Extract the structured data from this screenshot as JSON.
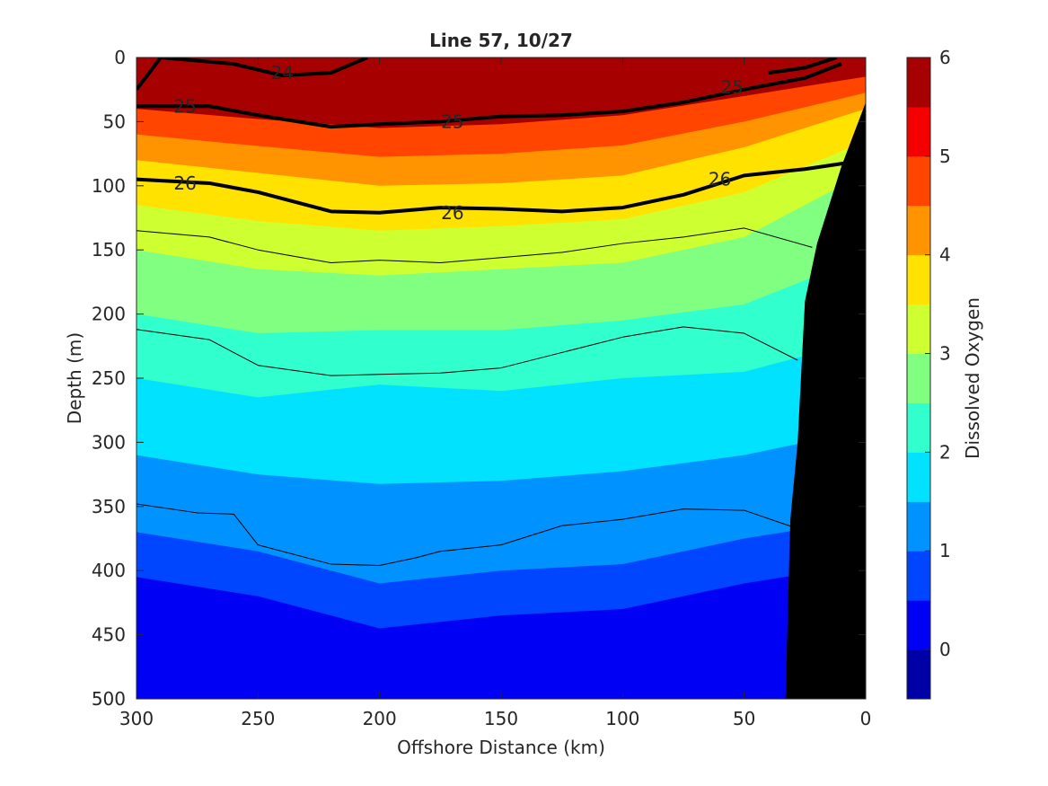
{
  "chart_data": {
    "type": "heatmap",
    "title": "Line 57, 10/27",
    "xlabel": "Offshore Distance (km)",
    "ylabel": "Depth (m)",
    "colorbar_label": "Dissolved Oxygen",
    "xlim": [
      300,
      0
    ],
    "ylim": [
      0,
      500
    ],
    "x_reversed": true,
    "y_reversed": true,
    "x_ticks": [
      300,
      250,
      200,
      150,
      100,
      50,
      0
    ],
    "y_ticks": [
      0,
      50,
      100,
      150,
      200,
      250,
      300,
      350,
      400,
      450,
      500
    ],
    "colorbar_range": [
      -0.5,
      6
    ],
    "colorbar_ticks": [
      0,
      1,
      2,
      3,
      4,
      5,
      6
    ],
    "colormap": "jet",
    "grid": false,
    "legend": "none",
    "oxygen_level_depths": {
      "levels": [
        5,
        4,
        3,
        2,
        1
      ],
      "x": [
        300,
        250,
        200,
        150,
        100,
        50,
        0
      ],
      "depth_m": [
        [
          40,
          48,
          55,
          52,
          45,
          30,
          15
        ],
        [
          80,
          90,
          100,
          98,
          92,
          70,
          40
        ],
        [
          150,
          165,
          170,
          165,
          160,
          140,
          90
        ],
        [
          250,
          265,
          255,
          260,
          250,
          245,
          220
        ],
        [
          370,
          385,
          410,
          400,
          395,
          375,
          360
        ]
      ]
    },
    "shelf_depth_m": {
      "x": [
        0,
        10,
        20,
        25,
        28,
        31,
        33
      ],
      "depth_m": [
        35,
        85,
        145,
        190,
        300,
        360,
        500
      ]
    },
    "density_isolines": [
      {
        "label": "24",
        "bold": true,
        "x": [
          300,
          290,
          260,
          240,
          220,
          205
        ],
        "depth_m": [
          25,
          0,
          5,
          14,
          12,
          0
        ],
        "label_positions": [
          [
            240,
            12
          ]
        ]
      },
      {
        "label": "24",
        "bold": true,
        "x": [
          40,
          25,
          12
        ],
        "depth_m": [
          12,
          8,
          0
        ],
        "label_positions": []
      },
      {
        "label": "25",
        "bold": true,
        "x": [
          300,
          270,
          250,
          220,
          200,
          175,
          150,
          125,
          100,
          75,
          50,
          25,
          10
        ],
        "depth_m": [
          38,
          38,
          45,
          54,
          52,
          50,
          46,
          45,
          42,
          35,
          25,
          16,
          5
        ],
        "label_positions": [
          [
            280,
            38
          ],
          [
            170,
            50
          ],
          [
            55,
            23
          ]
        ]
      },
      {
        "label": "26",
        "bold": true,
        "x": [
          300,
          270,
          250,
          220,
          200,
          175,
          150,
          125,
          100,
          75,
          50,
          25,
          0
        ],
        "depth_m": [
          95,
          98,
          105,
          120,
          121,
          117,
          118,
          120,
          117,
          107,
          92,
          87,
          80
        ],
        "label_positions": [
          [
            280,
            98
          ],
          [
            170,
            121
          ],
          [
            60,
            95
          ]
        ]
      },
      {
        "label": "",
        "bold": false,
        "x": [
          300,
          270,
          250,
          220,
          200,
          175,
          150,
          125,
          100,
          75,
          50,
          22
        ],
        "depth_m": [
          135,
          140,
          150,
          160,
          158,
          160,
          156,
          152,
          145,
          140,
          133,
          148
        ],
        "label_positions": []
      },
      {
        "label": "",
        "bold": false,
        "x": [
          300,
          270,
          250,
          220,
          200,
          175,
          150,
          125,
          100,
          75,
          50,
          28
        ],
        "depth_m": [
          212,
          220,
          240,
          248,
          247,
          246,
          242,
          230,
          218,
          210,
          215,
          236
        ],
        "label_positions": []
      },
      {
        "label": "",
        "bold": false,
        "x": [
          300,
          275,
          260,
          250,
          220,
          200,
          185,
          175,
          150,
          125,
          100,
          75,
          50,
          30
        ],
        "depth_m": [
          348,
          355,
          356,
          380,
          395,
          396,
          390,
          385,
          380,
          365,
          360,
          352,
          353,
          366
        ],
        "label_positions": []
      }
    ]
  }
}
